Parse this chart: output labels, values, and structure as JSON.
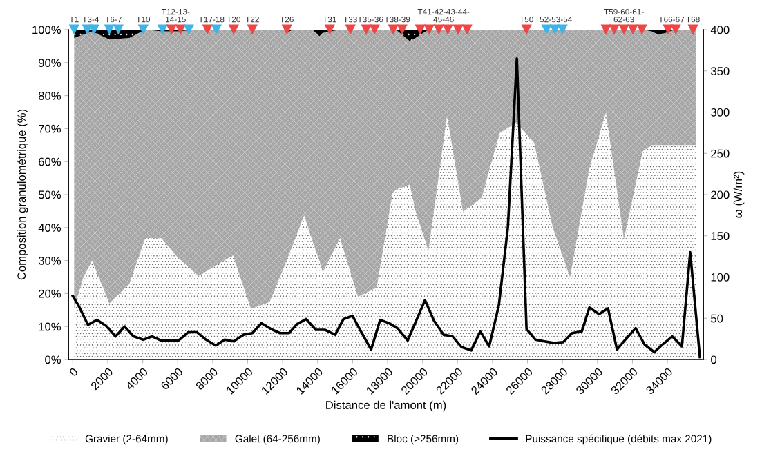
{
  "chart_data": {
    "type": "area",
    "stacked": true,
    "xlabel": "Distance de l'amont (m)",
    "ylabel": "Composition granulométrique (%)",
    "y2label": "ω (W/m²)",
    "xlim": [
      -250,
      36050
    ],
    "xticks": [
      0,
      2000,
      4000,
      6000,
      8000,
      10000,
      12000,
      14000,
      16000,
      18000,
      20000,
      22000,
      24000,
      26000,
      28000,
      30000,
      32000,
      34000
    ],
    "ylim": [
      0,
      100
    ],
    "yticks": [
      {
        "value": 0,
        "label": "0%"
      },
      {
        "value": 10,
        "label": "10%"
      },
      {
        "value": 20,
        "label": "20%"
      },
      {
        "value": 30,
        "label": "30%"
      },
      {
        "value": 40,
        "label": "40%"
      },
      {
        "value": 50,
        "label": "50%"
      },
      {
        "value": 60,
        "label": "60%"
      },
      {
        "value": 70,
        "label": "70%"
      },
      {
        "value": 80,
        "label": "80%"
      },
      {
        "value": 90,
        "label": "90%"
      },
      {
        "value": 100,
        "label": "100%"
      }
    ],
    "y2lim": [
      0,
      400
    ],
    "y2ticks": [
      0,
      50,
      100,
      150,
      200,
      250,
      300,
      350,
      400
    ],
    "grid": false,
    "legend": "bottom",
    "x": [
      79,
      592,
      1106,
      2093,
      3238,
      4146,
      5055,
      6000,
      7187,
      9161,
      10188,
      11254,
      12000,
      12300,
      12600,
      13229,
      13700,
      14100,
      14295,
      15282,
      16309,
      17375,
      18283,
      18480,
      19270,
      19600,
      20336,
      21402,
      22310,
      23377,
      24403,
      25351,
      26378,
      27444,
      28431,
      29537,
      30485,
      31512,
      32578,
      33091,
      33490,
      33900,
      34430,
      35620
    ],
    "series": [
      {
        "name": "Gravier (2-64mm)",
        "color": "#ffffff",
        "values": [
          15.5,
          24.7,
          30,
          17,
          23,
          36.8,
          36.8,
          31,
          25.3,
          31.6,
          15.3,
          17.4,
          27,
          31,
          35,
          43.7,
          36,
          30,
          26.4,
          36.8,
          19,
          21.8,
          50.4,
          51.5,
          53,
          45,
          33,
          74,
          44.8,
          49,
          68.6,
          71.8,
          65.7,
          40,
          24.9,
          58,
          74.9,
          36.4,
          63,
          65,
          65,
          65,
          65,
          65
        ]
      },
      {
        "name": "Galet (64-256mm)",
        "color": "#a6a6a6",
        "values": [
          82,
          73.8,
          69.5,
          80,
          74.5,
          63.2,
          62.7,
          68.5,
          74.7,
          68.4,
          84.7,
          82.6,
          73,
          68.2,
          65,
          56.3,
          64,
          68,
          72.6,
          63.2,
          81,
          78.2,
          49.6,
          48.5,
          43.5,
          52.5,
          67,
          26,
          55.2,
          51,
          31.4,
          28.2,
          34.3,
          60,
          75.1,
          42,
          25.1,
          63.6,
          37,
          34.5,
          33.5,
          34,
          35,
          35
        ]
      },
      {
        "name": "Bloc (>256mm)",
        "color": "#000000",
        "values": [
          2.5,
          1.5,
          0.5,
          3,
          2.5,
          0,
          0.5,
          0.5,
          0,
          0,
          0,
          0,
          0,
          0.8,
          0,
          0,
          0,
          2,
          1,
          0,
          0,
          0,
          0,
          0,
          3.5,
          2.5,
          0,
          0,
          0,
          0,
          0,
          0,
          0,
          0,
          0,
          0,
          0,
          0,
          0,
          0.5,
          1.5,
          1,
          0,
          0
        ]
      },
      {
        "name": "Puissance spécifique (débits max 2021)",
        "type": "line",
        "axis": "y2",
        "color": "#000000",
        "line_style": "solid",
        "x": [
          0,
          316,
          869,
          1382,
          1895,
          2448,
          2962,
          3475,
          4028,
          4541,
          5055,
          6042,
          6595,
          7108,
          7621,
          8174,
          8687,
          9200,
          9753,
          10267,
          10780,
          11333,
          11846,
          12360,
          12834,
          13347,
          13900,
          14413,
          15006,
          15479,
          15993,
          16506,
          17059,
          17573,
          18086,
          18559,
          19151,
          20139,
          20652,
          21205,
          21718,
          22231,
          22784,
          23298,
          23811,
          24364,
          24877,
          25391,
          25944,
          26457,
          26970,
          27523,
          28037,
          28550,
          29103,
          29537,
          30090,
          30603,
          31116,
          31669,
          32183,
          32696,
          33249,
          33762,
          34276,
          34829,
          35302,
          35855
        ],
        "values": [
          77,
          66,
          42,
          48,
          41,
          28,
          40,
          28,
          24,
          28,
          23,
          23,
          33,
          33,
          24,
          17,
          24,
          22,
          30,
          32,
          44,
          37,
          32,
          32,
          43,
          49,
          36,
          36,
          30,
          49,
          53,
          33,
          12,
          48,
          44,
          38,
          23,
          72,
          47,
          30,
          28,
          15,
          11,
          34,
          16,
          66,
          160,
          365,
          37,
          24,
          22,
          20,
          21,
          32,
          34,
          63,
          55,
          62,
          12,
          26,
          38,
          18,
          9,
          19,
          28,
          16,
          130,
          3
        ]
      },
      {
        "type": "scatter",
        "marker": "triangle",
        "x": [
          79,
          829,
          1224,
          2093,
          2606,
          4028,
          5134,
          5647,
          6160,
          6634,
          7700,
          8214,
          9201,
          10267,
          12241,
          14690,
          15874,
          16783,
          17256,
          18323,
          18836,
          19863,
          20376,
          20929,
          21442,
          22034,
          22548,
          25944,
          27089,
          27563,
          27997,
          30485,
          30959,
          31512,
          32025,
          32538,
          34039,
          34473,
          35461
        ],
        "values": [
          100,
          100,
          100,
          100,
          100,
          100,
          100,
          100,
          100,
          100,
          100,
          100,
          100,
          100,
          100,
          100,
          100,
          100,
          100,
          100,
          100,
          100,
          100,
          100,
          100,
          100,
          100,
          100,
          100,
          100,
          100,
          100,
          100,
          100,
          100,
          100,
          100,
          100,
          100
        ],
        "colors": [
          "#3fb4e8",
          "#3fb4e8",
          "#3fb4e8",
          "#3fb4e8",
          "#3fb4e8",
          "#3fb4e8",
          "#3fb4e8",
          "#f04545",
          "#f04545",
          "#3fb4e8",
          "#f04545",
          "#3fb4e8",
          "#f04545",
          "#f04545",
          "#f04545",
          "#f04545",
          "#f04545",
          "#f04545",
          "#f04545",
          "#f04545",
          "#f04545",
          "#f04545",
          "#f04545",
          "#f04545",
          "#f04545",
          "#f04545",
          "#f04545",
          "#f04545",
          "#3fb4e8",
          "#3fb4e8",
          "#3fb4e8",
          "#f04545",
          "#f04545",
          "#f04545",
          "#f04545",
          "#f04545",
          "#f04545",
          "#f04545",
          "#f04545"
        ]
      }
    ],
    "annotations": [
      {
        "text": "T1",
        "x": 79,
        "y": 100
      },
      {
        "text": "T3-4",
        "x": 1027,
        "y": 100
      },
      {
        "text": "T6-7",
        "x": 2330,
        "y": 100
      },
      {
        "text": "T10",
        "x": 4028,
        "y": 100
      },
      {
        "text": "T12-13-\n14-15",
        "x": 5884,
        "y": 100
      },
      {
        "text": "T17-18",
        "x": 7937,
        "y": 100
      },
      {
        "text": "T20",
        "x": 9201,
        "y": 100
      },
      {
        "text": "T22",
        "x": 10267,
        "y": 100
      },
      {
        "text": "T26",
        "x": 12241,
        "y": 100
      },
      {
        "text": "T31",
        "x": 14690,
        "y": 100
      },
      {
        "text": "T33",
        "x": 15874,
        "y": 100
      },
      {
        "text": "T35-36",
        "x": 17020,
        "y": 100
      },
      {
        "text": "T38-39",
        "x": 18560,
        "y": 100
      },
      {
        "text": "T41-42-43-44-\n45-46",
        "x": 21205,
        "y": 100
      },
      {
        "text": "T50",
        "x": 25944,
        "y": 100
      },
      {
        "text": "T52-53-54",
        "x": 27484,
        "y": 100
      },
      {
        "text": "T59-60-61-\n62-63",
        "x": 31512,
        "y": 100
      },
      {
        "text": "T66-67",
        "x": 34236,
        "y": 100
      },
      {
        "text": "T68",
        "x": 35461,
        "y": 100
      }
    ]
  }
}
